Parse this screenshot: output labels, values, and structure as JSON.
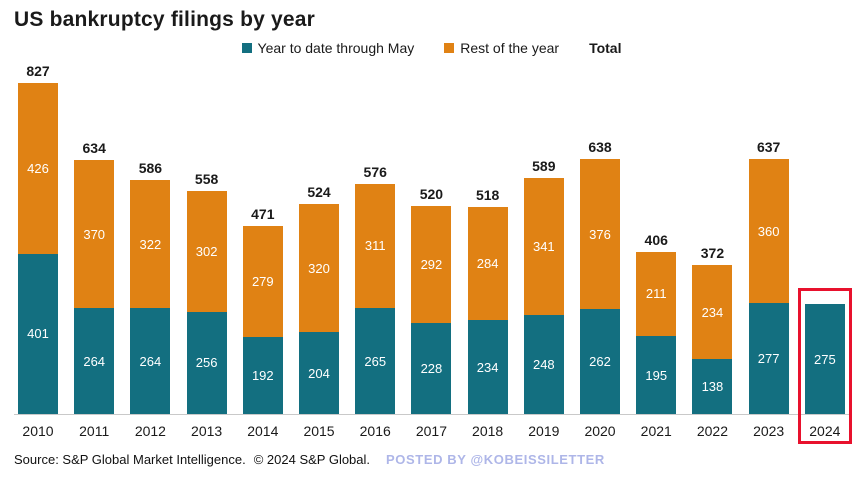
{
  "title": "US bankruptcy filings by year",
  "legend": {
    "ytd_label": "Year to date through May",
    "rest_label": "Rest of the year",
    "total_label": "Total"
  },
  "colors": {
    "ytd": "#136F80",
    "rest": "#E08214",
    "highlight": "#E8112D",
    "posted_by": "#AEB6E8"
  },
  "footer": {
    "source": "Source: S&P Global Market Intelligence.",
    "copyright": "© 2024 S&P Global.",
    "posted_by": "POSTED BY @KOBEISSILETTER"
  },
  "chart_data": {
    "type": "bar",
    "stacked": true,
    "title": "US bankruptcy filings by year",
    "legend_position": "top",
    "grid": false,
    "ylim": [
      0,
      890
    ],
    "categories": [
      "2010",
      "2011",
      "2012",
      "2013",
      "2014",
      "2015",
      "2016",
      "2017",
      "2018",
      "2019",
      "2020",
      "2021",
      "2022",
      "2023",
      "2024"
    ],
    "series": [
      {
        "name": "Year to date through May",
        "values": [
          401,
          264,
          264,
          256,
          192,
          204,
          265,
          228,
          234,
          248,
          262,
          195,
          138,
          277,
          275
        ]
      },
      {
        "name": "Rest of the year",
        "values": [
          426,
          370,
          322,
          302,
          279,
          320,
          311,
          292,
          284,
          341,
          376,
          211,
          234,
          360,
          null
        ]
      }
    ],
    "totals": [
      827,
      634,
      586,
      558,
      471,
      524,
      576,
      520,
      518,
      589,
      638,
      406,
      372,
      637,
      null
    ],
    "highlight_category": "2024"
  }
}
